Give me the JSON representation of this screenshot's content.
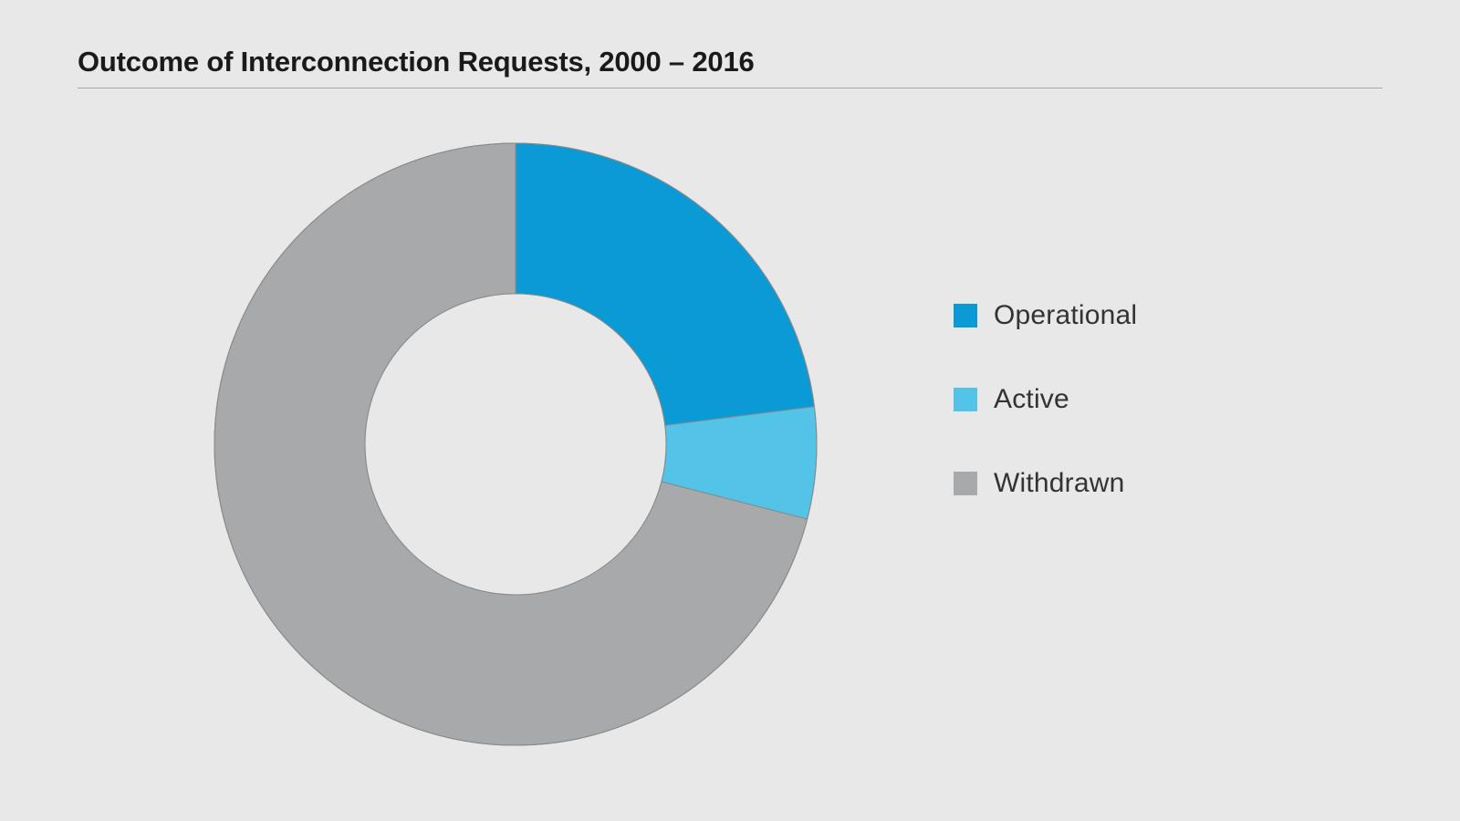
{
  "title": "Outcome of Interconnection Requests, 2000 – 2016",
  "chart": {
    "type": "donut",
    "background_color": "#e8e8e8",
    "stroke_color": "#888888",
    "stroke_width": 1,
    "outer_radius": 330,
    "inner_radius": 165,
    "start_angle_deg": -90,
    "series": [
      {
        "label": "Operational",
        "value": 23,
        "color": "#0a9bd6"
      },
      {
        "label": "Active",
        "value": 6,
        "color": "#54c3e8"
      },
      {
        "label": "Withdrawn",
        "value": 71,
        "color": "#a7a9ab"
      }
    ]
  },
  "legend": {
    "label_fontsize": 30,
    "label_color": "#333333",
    "swatch_size": 26
  },
  "title_style": {
    "fontsize": 31,
    "weight": 700,
    "color": "#1a1a1a",
    "underline_color": "#a8a8a8"
  }
}
